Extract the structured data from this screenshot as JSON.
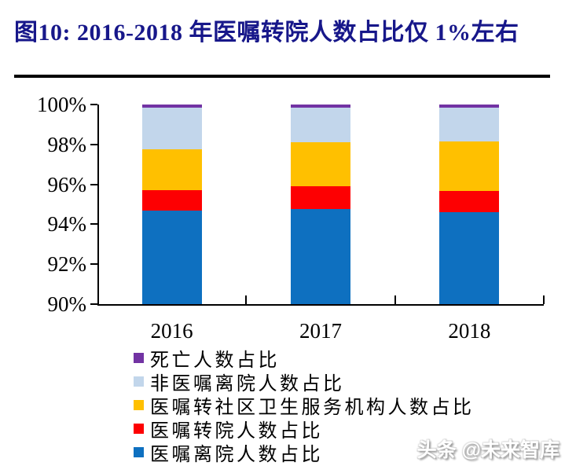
{
  "header": {
    "title": "图10:  2016-2018 年医嘱转院人数占比仅 1%左右",
    "title_color": "#17178a"
  },
  "watermark": {
    "text": "头条 @未来智库"
  },
  "chart_data": {
    "type": "bar",
    "stacked": true,
    "title": "图10: 2016-2018 年医嘱转院人数占比仅 1%左右",
    "categories": [
      "2016",
      "2017",
      "2018"
    ],
    "series": [
      {
        "name": "医嘱离院人数占比",
        "color": "#0e70c0",
        "values": [
          94.7,
          94.75,
          94.6
        ]
      },
      {
        "name": "医嘱转院人数占比",
        "color": "#fd0002",
        "values": [
          1.0,
          1.15,
          1.05
        ]
      },
      {
        "name": "医嘱转社区卫生服务机构人数占比",
        "color": "#ffc000",
        "values": [
          2.05,
          2.2,
          2.5
        ]
      },
      {
        "name": "非医嘱离院人数占比",
        "color": "#c2d6eb",
        "values": [
          2.1,
          1.75,
          1.7
        ]
      },
      {
        "name": "死亡人数占比",
        "color": "#7233a3",
        "values": [
          0.15,
          0.15,
          0.15
        ]
      }
    ],
    "ylim": [
      90,
      100
    ],
    "ytick_labels": [
      "100%",
      "98%",
      "96%",
      "94%",
      "92%",
      "90%"
    ],
    "xlabel": "",
    "ylabel": "",
    "grid": false,
    "legend_position": "bottom-left",
    "legend_order": [
      "死亡人数占比",
      "非医嘱离院人数占比",
      "医嘱转社区卫生服务机构人数占比",
      "医嘱转院人数占比",
      "医嘱离院人数占比"
    ]
  }
}
